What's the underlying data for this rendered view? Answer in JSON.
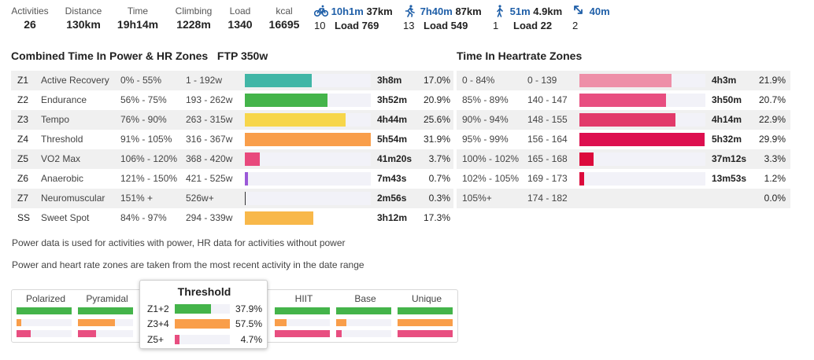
{
  "summary": [
    {
      "label": "Activities",
      "value": "26"
    },
    {
      "label": "Distance",
      "value": "130km"
    },
    {
      "label": "Time",
      "value": "19h14m"
    },
    {
      "label": "Climbing",
      "value": "1228m"
    },
    {
      "label": "Load",
      "value": "1340"
    },
    {
      "label": "kcal",
      "value": "16695"
    }
  ],
  "sports": [
    {
      "icon": "bike-icon",
      "time": "10h1m",
      "distance": "37km",
      "count": "10",
      "load": "Load 769"
    },
    {
      "icon": "run-icon",
      "time": "7h40m",
      "distance": "87km",
      "count": "13",
      "load": "Load 549"
    },
    {
      "icon": "walk-icon",
      "time": "51m",
      "distance": "4.9km",
      "count": "1",
      "load": "Load 22"
    },
    {
      "icon": "other-activity-icon",
      "time": "40m",
      "distance": "",
      "count": "2",
      "load": ""
    }
  ],
  "power_section": {
    "title": "Combined Time In Power & HR Zones",
    "ftp": "FTP 350w"
  },
  "hr_section": {
    "title": "Time In Heartrate Zones"
  },
  "power_zones": [
    {
      "id": "Z1",
      "name": "Active Recovery",
      "pct_range": "0% - 55%",
      "watts": "1 - 192w",
      "time": "3h8m",
      "pct": "17.0%",
      "share": 0.17,
      "color": "#41b6a6"
    },
    {
      "id": "Z2",
      "name": "Endurance",
      "pct_range": "56% - 75%",
      "watts": "193 - 262w",
      "time": "3h52m",
      "pct": "20.9%",
      "share": 0.209,
      "color": "#44b44a"
    },
    {
      "id": "Z3",
      "name": "Tempo",
      "pct_range": "76% - 90%",
      "watts": "263 - 315w",
      "time": "4h44m",
      "pct": "25.6%",
      "share": 0.256,
      "color": "#f7d64a"
    },
    {
      "id": "Z4",
      "name": "Threshold",
      "pct_range": "91% - 105%",
      "watts": "316 - 367w",
      "time": "5h54m",
      "pct": "31.9%",
      "share": 0.319,
      "color": "#f99e4a"
    },
    {
      "id": "Z5",
      "name": "VO2 Max",
      "pct_range": "106% - 120%",
      "watts": "368 - 420w",
      "time": "41m20s",
      "pct": "3.7%",
      "share": 0.037,
      "color": "#e8497c"
    },
    {
      "id": "Z6",
      "name": "Anaerobic",
      "pct_range": "121% - 150%",
      "watts": "421 - 525w",
      "time": "7m43s",
      "pct": "0.7%",
      "share": 0.007,
      "color": "#9b59d8"
    },
    {
      "id": "Z7",
      "name": "Neuromuscular",
      "pct_range": "151% +",
      "watts": "526w+",
      "time": "2m56s",
      "pct": "0.3%",
      "share": 0.003,
      "color": "#333333"
    },
    {
      "id": "SS",
      "name": "Sweet Spot",
      "pct_range": "84% - 97%",
      "watts": "294 - 339w",
      "time": "3h12m",
      "pct": "17.3%",
      "share": 0.173,
      "color": "#f8b84a"
    }
  ],
  "hr_zones": [
    {
      "pct_range": "0 - 84%",
      "bpm": "0 - 139",
      "time": "4h3m",
      "pct": "21.9%",
      "share": 0.219,
      "color": "#ee8fa8"
    },
    {
      "pct_range": "85% - 89%",
      "bpm": "140 - 147",
      "time": "3h50m",
      "pct": "20.7%",
      "share": 0.207,
      "color": "#e84e80"
    },
    {
      "pct_range": "90% - 94%",
      "bpm": "148 - 155",
      "time": "4h14m",
      "pct": "22.9%",
      "share": 0.229,
      "color": "#e23a6a"
    },
    {
      "pct_range": "95% - 99%",
      "bpm": "156 - 164",
      "time": "5h32m",
      "pct": "29.9%",
      "share": 0.299,
      "color": "#dd0f4f"
    },
    {
      "pct_range": "100% - 102%",
      "bpm": "165 - 168",
      "time": "37m12s",
      "pct": "3.3%",
      "share": 0.033,
      "color": "#dc0a3c"
    },
    {
      "pct_range": "102% - 105%",
      "bpm": "169 - 173",
      "time": "13m53s",
      "pct": "1.2%",
      "share": 0.012,
      "color": "#dc0a3c"
    },
    {
      "pct_range": "105%+",
      "bpm": "174 - 182",
      "time": "",
      "pct": "0.0%",
      "share": 0.0,
      "color": "#dc0a3c"
    }
  ],
  "notes": {
    "line1": "Power data is used for activities with power, HR data for activities without power",
    "line2": "Power and heart rate zones are taken from the most recent activity in the date range"
  },
  "distributions": [
    {
      "name": "Polarized",
      "bars": [
        1.0,
        0.08,
        0.25
      ]
    },
    {
      "name": "Pyramidal",
      "bars": [
        1.0,
        0.67,
        0.33
      ]
    },
    {
      "name": "HIIT",
      "bars": [
        1.0,
        0.22,
        1.0
      ]
    },
    {
      "name": "Base",
      "bars": [
        1.0,
        0.18,
        0.1
      ]
    },
    {
      "name": "Unique",
      "bars": [
        1.0,
        1.0,
        1.0
      ]
    }
  ],
  "distribution_colors": [
    "#44b44a",
    "#f99e4a",
    "#e84e80"
  ],
  "popup": {
    "title": "Threshold",
    "rows": [
      {
        "label": "Z1+2",
        "pct": "37.9%",
        "share": 0.379,
        "color": "#44b44a"
      },
      {
        "label": "Z3+4",
        "pct": "57.5%",
        "share": 0.575,
        "color": "#f99e4a"
      },
      {
        "label": "Z5+",
        "pct": "4.7%",
        "share": 0.047,
        "color": "#e84e80"
      }
    ]
  }
}
